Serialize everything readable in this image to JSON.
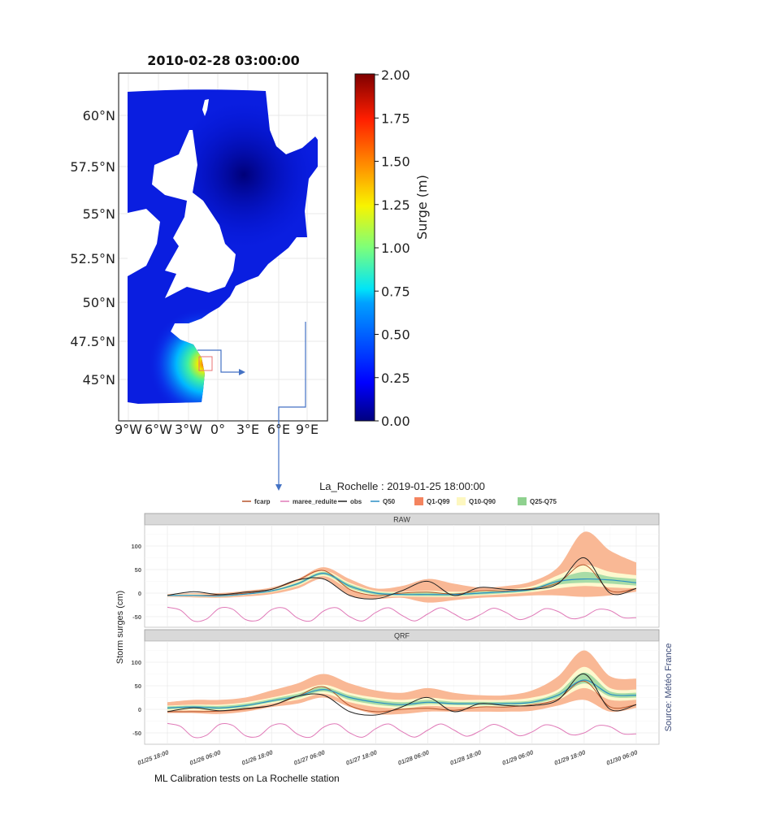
{
  "map": {
    "title": "2010-02-28 03:00:00",
    "lat_ticks": [
      "60°N",
      "57.5°N",
      "55°N",
      "52.5°N",
      "50°N",
      "47.5°N",
      "45°N"
    ],
    "lon_ticks": [
      "9°W",
      "6°W",
      "3°W",
      "0°",
      "3°E",
      "6°E",
      "9°E"
    ],
    "colorbar": {
      "label": "Surge (m)",
      "ticks": [
        "2.00",
        "1.75",
        "1.50",
        "1.25",
        "1.00",
        "0.75",
        "0.50",
        "0.25",
        "0.00"
      ],
      "range": [
        0,
        2
      ],
      "colormap": "jet"
    },
    "colors": {
      "sea": "#0a1ee0",
      "highlight_box": "#e87070",
      "connector": "#4472c4"
    }
  },
  "chart_data": {
    "type": "line",
    "title": "La_Rochelle : 2019-01-25 18:00:00",
    "ylabel": "Storm surges (cm)",
    "xlabel": "",
    "legend": {
      "placement": "top",
      "lines": [
        {
          "name": "fcarp",
          "color": "#b5542a"
        },
        {
          "name": "maree_reduite",
          "color": "#e07ab8"
        },
        {
          "name": "obs",
          "color": "#222222"
        },
        {
          "name": "Q50",
          "color": "#2a8fc4"
        }
      ],
      "bands": [
        {
          "name": "Q1-Q99",
          "color": "#f4845f",
          "fill": "#f9b895"
        },
        {
          "name": "Q10-Q90",
          "color": "#fdf7c0",
          "fill": "#fdf9cf"
        },
        {
          "name": "Q25-Q75",
          "color": "#8fd18f",
          "fill": "#a8dca6"
        }
      ]
    },
    "x_ticks": [
      "01/25 18:00",
      "01/26 06:00",
      "01/26 18:00",
      "01/27 06:00",
      "01/27 18:00",
      "01/28 06:00",
      "01/28 18:00",
      "01/29 06:00",
      "01/29 18:00",
      "01/30 06:00"
    ],
    "y_ticks": [
      100,
      50,
      0,
      -50
    ],
    "grid": true,
    "x": [
      "01/25 18:00",
      "01/26 00:00",
      "01/26 06:00",
      "01/26 12:00",
      "01/26 18:00",
      "01/27 00:00",
      "01/27 06:00",
      "01/27 12:00",
      "01/27 18:00",
      "01/28 00:00",
      "01/28 06:00",
      "01/28 12:00",
      "01/28 18:00",
      "01/29 00:00",
      "01/29 06:00",
      "01/29 12:00",
      "01/29 18:00",
      "01/30 00:00",
      "01/30 06:00"
    ],
    "tide_x": [
      "01/25 18:00",
      "01/25 21:00",
      "01/26 00:00",
      "01/26 03:00",
      "01/26 06:00",
      "01/26 09:00",
      "01/26 12:00",
      "01/26 15:00",
      "01/26 18:00",
      "01/26 21:00",
      "01/27 00:00",
      "01/27 03:00",
      "01/27 06:00",
      "01/27 09:00",
      "01/27 12:00",
      "01/27 15:00",
      "01/27 18:00",
      "01/27 21:00",
      "01/28 00:00",
      "01/28 03:00",
      "01/28 06:00",
      "01/28 09:00",
      "01/28 12:00",
      "01/28 15:00",
      "01/28 18:00",
      "01/28 21:00",
      "01/29 00:00",
      "01/29 03:00",
      "01/29 06:00",
      "01/29 09:00",
      "01/29 12:00",
      "01/29 15:00",
      "01/29 18:00",
      "01/29 21:00",
      "01/30 00:00",
      "01/30 03:00",
      "01/30 06:00"
    ],
    "maree_reduite": [
      -30,
      -36,
      -59,
      -55,
      -32,
      -34,
      -56,
      -57,
      -35,
      -32,
      -53,
      -59,
      -38,
      -31,
      -50,
      -59,
      -41,
      -31,
      -47,
      -59,
      -44,
      -31,
      -44,
      -57,
      -46,
      -32,
      -41,
      -56,
      -48,
      -33,
      -39,
      -54,
      -50,
      -35,
      -37,
      -52,
      -52
    ],
    "panels": [
      {
        "label": "RAW",
        "ylim": [
          -72,
          145
        ],
        "obs": [
          -5,
          3,
          -3,
          2,
          8,
          28,
          30,
          -5,
          -12,
          5,
          25,
          -5,
          12,
          8,
          8,
          20,
          75,
          0,
          10
        ],
        "fcarp": [
          -5,
          -5,
          -4,
          0,
          8,
          28,
          48,
          8,
          -5,
          0,
          2,
          -2,
          5,
          5,
          10,
          22,
          60,
          5,
          10
        ],
        "Q50": [
          -5,
          -5,
          -6,
          -2,
          5,
          20,
          42,
          15,
          0,
          -3,
          -3,
          -3,
          0,
          3,
          8,
          25,
          30,
          28,
          22
        ],
        "Q1": [
          -8,
          -9,
          -10,
          -7,
          -2,
          10,
          30,
          -5,
          -12,
          -10,
          -20,
          -15,
          -10,
          -8,
          -5,
          -5,
          -8,
          -5,
          3
        ],
        "Q99": [
          -2,
          0,
          0,
          5,
          12,
          30,
          55,
          30,
          10,
          15,
          30,
          20,
          12,
          15,
          25,
          55,
          130,
          90,
          65
        ],
        "Q10": [
          -7,
          -7,
          -8,
          -4,
          2,
          15,
          36,
          8,
          -6,
          -7,
          -8,
          -8,
          -5,
          -2,
          2,
          10,
          15,
          12,
          10
        ],
        "Q90": [
          -3,
          -2,
          -3,
          1,
          8,
          25,
          48,
          22,
          5,
          3,
          5,
          3,
          5,
          8,
          15,
          38,
          60,
          45,
          38
        ],
        "Q25": [
          -6,
          -6,
          -7,
          -3,
          3,
          17,
          39,
          11,
          -3,
          -5,
          -6,
          -6,
          -3,
          0,
          5,
          18,
          22,
          20,
          16
        ],
        "Q75": [
          -4,
          -4,
          -4,
          0,
          6,
          23,
          45,
          19,
          3,
          0,
          1,
          0,
          3,
          6,
          11,
          30,
          45,
          35,
          30
        ]
      },
      {
        "label": "QRF",
        "ylim": [
          -75,
          145
        ],
        "obs": [
          -5,
          3,
          -3,
          2,
          8,
          28,
          30,
          -5,
          -12,
          5,
          25,
          -5,
          12,
          8,
          8,
          20,
          75,
          0,
          10
        ],
        "fcarp": [
          -5,
          -5,
          -4,
          0,
          8,
          28,
          48,
          8,
          -5,
          0,
          2,
          -2,
          5,
          5,
          10,
          22,
          60,
          5,
          10
        ],
        "Q50": [
          3,
          5,
          3,
          8,
          18,
          28,
          42,
          25,
          15,
          10,
          15,
          12,
          12,
          12,
          15,
          30,
          62,
          32,
          30
        ],
        "Q1": [
          -8,
          -8,
          -10,
          -5,
          5,
          12,
          25,
          5,
          -10,
          -10,
          -5,
          -5,
          -5,
          -5,
          -3,
          8,
          20,
          -5,
          3
        ],
        "Q99": [
          15,
          20,
          20,
          25,
          40,
          55,
          75,
          55,
          40,
          35,
          45,
          35,
          30,
          30,
          40,
          70,
          125,
          70,
          65
        ],
        "Q10": [
          -3,
          -2,
          -3,
          2,
          12,
          20,
          33,
          15,
          5,
          2,
          7,
          5,
          5,
          5,
          8,
          20,
          45,
          20,
          20
        ],
        "Q90": [
          8,
          10,
          10,
          15,
          25,
          37,
          52,
          35,
          25,
          20,
          25,
          20,
          20,
          20,
          25,
          42,
          90,
          45,
          42
        ],
        "Q25": [
          0,
          2,
          0,
          5,
          15,
          24,
          38,
          20,
          10,
          6,
          11,
          9,
          9,
          9,
          12,
          25,
          55,
          27,
          25
        ],
        "Q75": [
          6,
          8,
          7,
          12,
          22,
          33,
          47,
          30,
          20,
          15,
          20,
          16,
          16,
          16,
          19,
          36,
          78,
          38,
          35
        ]
      }
    ],
    "source": "Source: Météo France"
  },
  "caption": "ML Calibration tests on La Rochelle station"
}
